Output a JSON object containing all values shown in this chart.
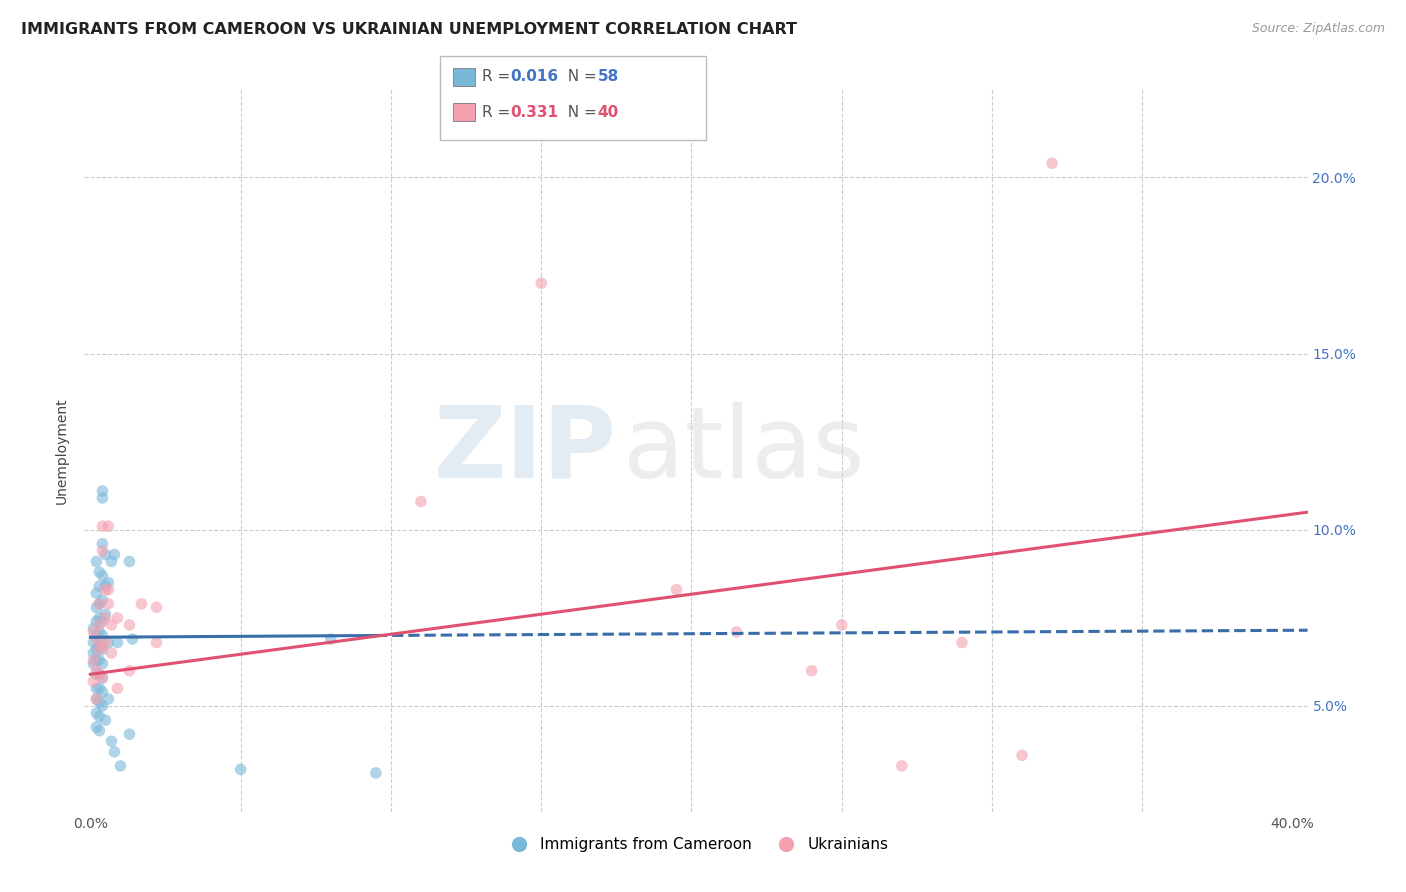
{
  "title": "IMMIGRANTS FROM CAMEROON VS UKRAINIAN UNEMPLOYMENT CORRELATION CHART",
  "source": "Source: ZipAtlas.com",
  "ylabel": "Unemployment",
  "yticks": [
    0.05,
    0.1,
    0.15,
    0.2
  ],
  "ytick_labels": [
    "5.0%",
    "10.0%",
    "15.0%",
    "20.0%"
  ],
  "xlim": [
    -0.002,
    0.405
  ],
  "ylim": [
    0.02,
    0.225
  ],
  "blue_color": "#7ab8d9",
  "pink_color": "#f4a0b0",
  "blue_line_color": "#3a6eaa",
  "pink_line_color": "#e05070",
  "watermark_zip": "ZIP",
  "watermark_atlas": "atlas",
  "blue_dots": [
    [
      0.001,
      0.068
    ],
    [
      0.001,
      0.072
    ],
    [
      0.001,
      0.065
    ],
    [
      0.001,
      0.062
    ],
    [
      0.002,
      0.091
    ],
    [
      0.002,
      0.082
    ],
    [
      0.002,
      0.078
    ],
    [
      0.002,
      0.074
    ],
    [
      0.002,
      0.07
    ],
    [
      0.002,
      0.066
    ],
    [
      0.002,
      0.063
    ],
    [
      0.002,
      0.059
    ],
    [
      0.002,
      0.055
    ],
    [
      0.002,
      0.052
    ],
    [
      0.002,
      0.048
    ],
    [
      0.002,
      0.044
    ],
    [
      0.003,
      0.088
    ],
    [
      0.003,
      0.084
    ],
    [
      0.003,
      0.079
    ],
    [
      0.003,
      0.075
    ],
    [
      0.003,
      0.071
    ],
    [
      0.003,
      0.067
    ],
    [
      0.003,
      0.063
    ],
    [
      0.003,
      0.059
    ],
    [
      0.003,
      0.055
    ],
    [
      0.003,
      0.051
    ],
    [
      0.003,
      0.047
    ],
    [
      0.003,
      0.043
    ],
    [
      0.004,
      0.111
    ],
    [
      0.004,
      0.109
    ],
    [
      0.004,
      0.096
    ],
    [
      0.004,
      0.087
    ],
    [
      0.004,
      0.08
    ],
    [
      0.004,
      0.074
    ],
    [
      0.004,
      0.07
    ],
    [
      0.004,
      0.066
    ],
    [
      0.004,
      0.062
    ],
    [
      0.004,
      0.058
    ],
    [
      0.004,
      0.054
    ],
    [
      0.004,
      0.05
    ],
    [
      0.005,
      0.093
    ],
    [
      0.005,
      0.084
    ],
    [
      0.005,
      0.076
    ],
    [
      0.005,
      0.046
    ],
    [
      0.006,
      0.085
    ],
    [
      0.006,
      0.068
    ],
    [
      0.006,
      0.052
    ],
    [
      0.007,
      0.091
    ],
    [
      0.007,
      0.04
    ],
    [
      0.008,
      0.093
    ],
    [
      0.008,
      0.037
    ],
    [
      0.009,
      0.068
    ],
    [
      0.01,
      0.033
    ],
    [
      0.013,
      0.091
    ],
    [
      0.013,
      0.042
    ],
    [
      0.014,
      0.069
    ],
    [
      0.05,
      0.032
    ],
    [
      0.08,
      0.069
    ],
    [
      0.095,
      0.031
    ]
  ],
  "pink_dots": [
    [
      0.001,
      0.071
    ],
    [
      0.001,
      0.063
    ],
    [
      0.001,
      0.057
    ],
    [
      0.002,
      0.069
    ],
    [
      0.002,
      0.06
    ],
    [
      0.002,
      0.052
    ],
    [
      0.003,
      0.079
    ],
    [
      0.003,
      0.073
    ],
    [
      0.003,
      0.066
    ],
    [
      0.003,
      0.059
    ],
    [
      0.004,
      0.101
    ],
    [
      0.004,
      0.094
    ],
    [
      0.004,
      0.067
    ],
    [
      0.004,
      0.058
    ],
    [
      0.005,
      0.083
    ],
    [
      0.005,
      0.075
    ],
    [
      0.005,
      0.068
    ],
    [
      0.006,
      0.101
    ],
    [
      0.006,
      0.083
    ],
    [
      0.006,
      0.079
    ],
    [
      0.007,
      0.073
    ],
    [
      0.007,
      0.065
    ],
    [
      0.009,
      0.075
    ],
    [
      0.009,
      0.055
    ],
    [
      0.013,
      0.073
    ],
    [
      0.013,
      0.06
    ],
    [
      0.017,
      0.079
    ],
    [
      0.022,
      0.078
    ],
    [
      0.022,
      0.068
    ],
    [
      0.11,
      0.108
    ],
    [
      0.15,
      0.17
    ],
    [
      0.195,
      0.083
    ],
    [
      0.215,
      0.071
    ],
    [
      0.24,
      0.06
    ],
    [
      0.25,
      0.073
    ],
    [
      0.27,
      0.033
    ],
    [
      0.29,
      0.068
    ],
    [
      0.31,
      0.036
    ],
    [
      0.32,
      0.204
    ]
  ],
  "blue_trendline_solid": [
    [
      0.0,
      0.0695
    ],
    [
      0.095,
      0.07
    ]
  ],
  "blue_trendline_dashed": [
    [
      0.095,
      0.07
    ],
    [
      0.405,
      0.0715
    ]
  ],
  "pink_trendline": [
    [
      0.0,
      0.059
    ],
    [
      0.405,
      0.105
    ]
  ],
  "background_color": "#ffffff",
  "grid_color": "#cccccc",
  "dot_size": 70,
  "dot_alpha": 0.6,
  "x_minor_ticks": [
    0.05,
    0.1,
    0.15,
    0.2,
    0.25,
    0.3,
    0.35
  ],
  "x_label_ticks": [
    0.0,
    0.4
  ]
}
